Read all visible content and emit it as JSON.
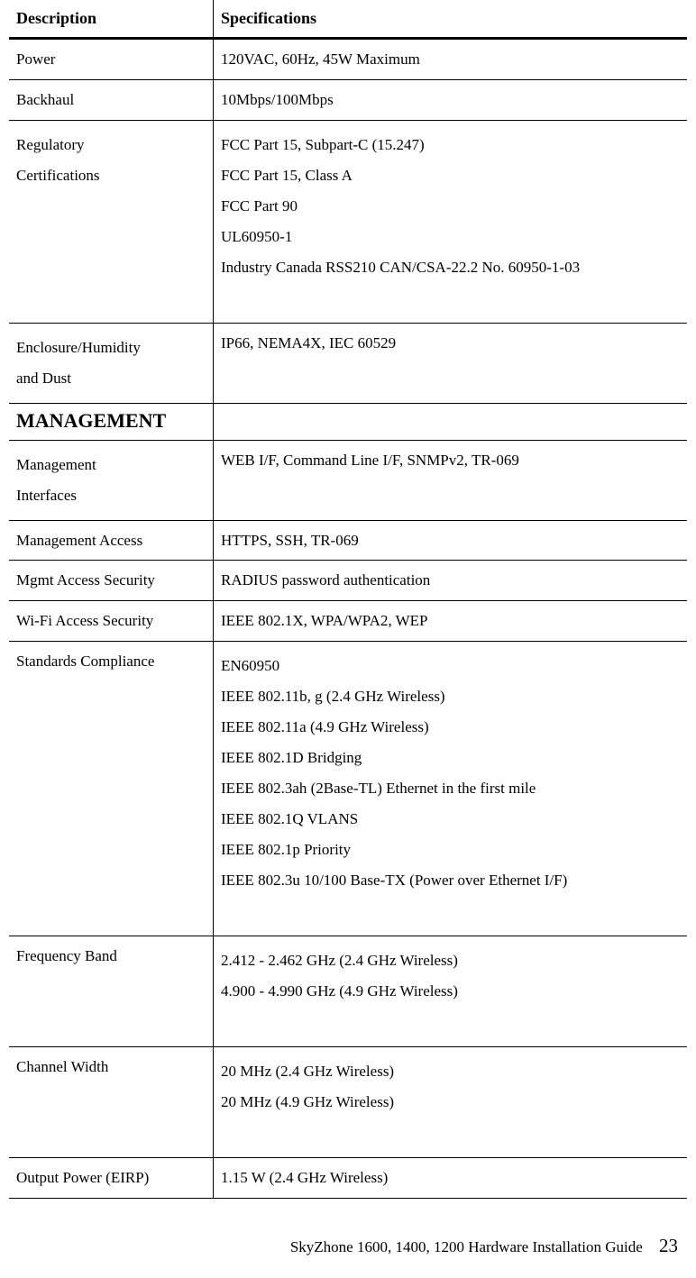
{
  "header": {
    "desc": "Description",
    "spec": "Specifications"
  },
  "rows": [
    {
      "desc": [
        "Power"
      ],
      "spec": [
        "120VAC, 60Hz, 45W Maximum"
      ]
    },
    {
      "desc": [
        "Backhaul"
      ],
      "spec": [
        "10Mbps/100Mbps"
      ]
    },
    {
      "desc": [
        "Regulatory",
        "Certifications"
      ],
      "spec": [
        "FCC Part 15, Subpart-C (15.247)",
        "FCC Part 15, Class A",
        "FCC Part 90",
        "UL60950-1",
        "Industry Canada RSS210 CAN/CSA-22.2 No. 60950-1-03"
      ],
      "trailing_gap": true
    },
    {
      "desc": [
        "Enclosure/Humidity",
        "and Dust"
      ],
      "spec": [
        "IP66, NEMA4X, IEC 60529"
      ]
    }
  ],
  "section": "MANAGEMENT",
  "rows2": [
    {
      "desc": [
        "Management",
        "Interfaces"
      ],
      "spec": [
        "WEB I/F, Command Line I/F, SNMPv2, TR-069"
      ]
    },
    {
      "desc": [
        "Management Access"
      ],
      "spec": [
        "HTTPS, SSH, TR-069"
      ]
    },
    {
      "desc": [
        "Mgmt Access Security"
      ],
      "spec": [
        "RADIUS password authentication"
      ]
    },
    {
      "desc": [
        "Wi-Fi Access Security"
      ],
      "spec": [
        "IEEE 802.1X, WPA/WPA2, WEP"
      ]
    },
    {
      "desc": [
        "Standards Compliance"
      ],
      "spec": [
        "EN60950",
        "IEEE 802.11b, g (2.4 GHz Wireless)",
        "IEEE 802.11a (4.9 GHz Wireless)",
        "IEEE 802.1D Bridging",
        "IEEE 802.3ah (2Base-TL) Ethernet in the first mile",
        "IEEE 802.1Q VLANS",
        "IEEE 802.1p Priority",
        "IEEE 802.3u 10/100 Base-TX (Power over Ethernet I/F)"
      ],
      "trailing_gap": true
    },
    {
      "desc": [
        "Frequency Band"
      ],
      "spec": [
        "2.412 - 2.462 GHz (2.4 GHz Wireless)",
        "4.900 - 4.990 GHz (4.9 GHz Wireless)"
      ],
      "trailing_gap": true
    },
    {
      "desc": [
        "Channel Width"
      ],
      "spec": [
        "20 MHz (2.4 GHz Wireless)",
        "20 MHz (4.9 GHz Wireless)"
      ],
      "trailing_gap": true
    },
    {
      "desc": [
        "Output Power (EIRP)"
      ],
      "spec": [
        "1.15 W (2.4 GHz Wireless)"
      ]
    }
  ],
  "footer": {
    "text": "SkyZhone 1600, 1400, 1200 Hardware Installation Guide",
    "page": "23"
  }
}
